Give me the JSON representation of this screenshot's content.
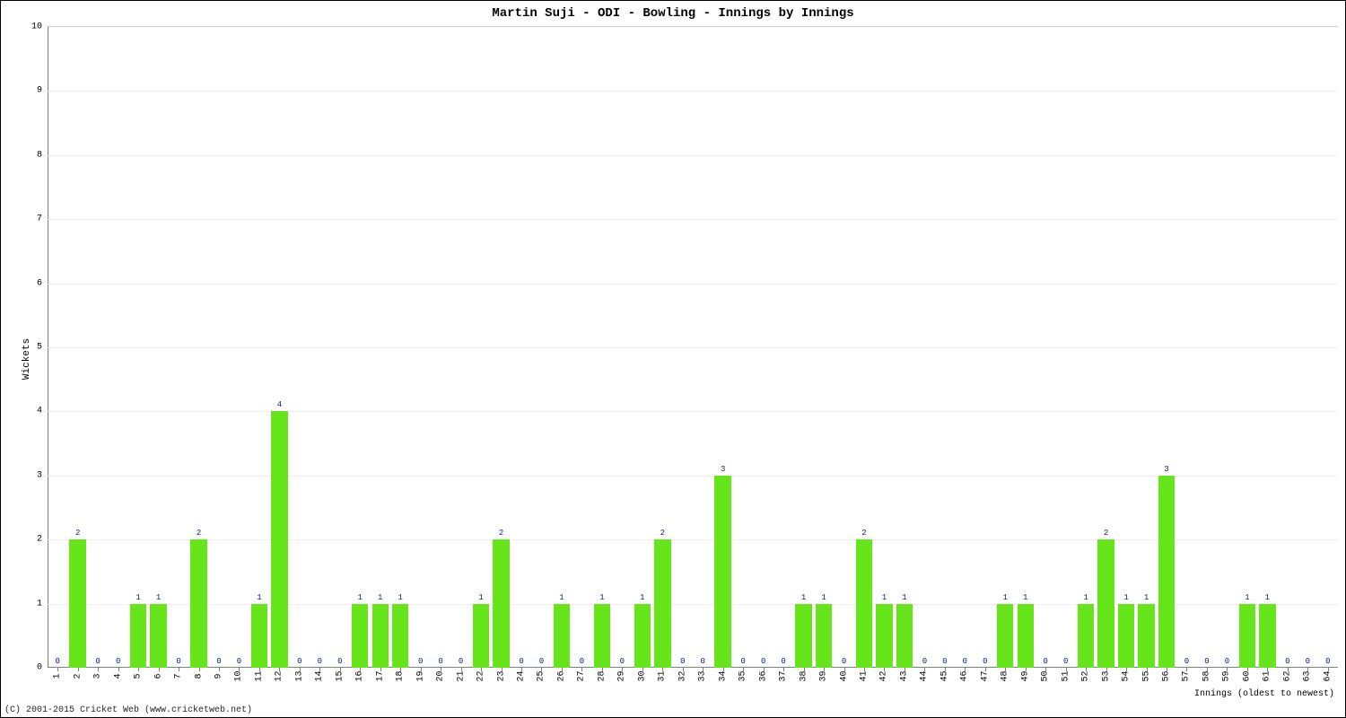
{
  "chart": {
    "type": "bar",
    "title": "Martin Suji - ODI - Bowling - Innings by Innings",
    "title_fontsize": 14,
    "xlabel": "Innings (oldest to newest)",
    "ylabel": "Wickets",
    "label_fontsize": 11,
    "copyright": "(C) 2001-2015 Cricket Web (www.cricketweb.net)",
    "background_color": "#ffffff",
    "plot_background_color": "#ffffff",
    "grid_color": "#eeeeee",
    "axis_color": "#808080",
    "border_color": "#000000",
    "bar_color": "#66e61a",
    "value_label_color": "#0a2472",
    "tick_label_color": "#000000",
    "ylim": [
      0,
      10
    ],
    "ytick_step": 1,
    "bar_width_ratio": 0.82,
    "value_label_fontsize": 9,
    "tick_label_fontsize": 10,
    "categories": [
      "1",
      "2",
      "3",
      "4",
      "5",
      "6",
      "7",
      "8",
      "9",
      "10",
      "11",
      "12",
      "13",
      "14",
      "15",
      "16",
      "17",
      "18",
      "19",
      "20",
      "21",
      "22",
      "23",
      "24",
      "25",
      "26",
      "27",
      "28",
      "29",
      "30",
      "31",
      "32",
      "33",
      "34",
      "35",
      "36",
      "37",
      "38",
      "39",
      "40",
      "41",
      "42",
      "43",
      "44",
      "45",
      "46",
      "47",
      "48",
      "49",
      "50",
      "51",
      "52",
      "53",
      "54",
      "55",
      "56",
      "57",
      "58",
      "59",
      "60",
      "61",
      "62",
      "63",
      "64"
    ],
    "values": [
      0,
      2,
      0,
      0,
      1,
      1,
      0,
      2,
      0,
      0,
      1,
      4,
      0,
      0,
      0,
      1,
      1,
      1,
      0,
      0,
      0,
      1,
      2,
      0,
      0,
      1,
      0,
      1,
      0,
      1,
      2,
      0,
      0,
      3,
      0,
      0,
      0,
      1,
      1,
      0,
      2,
      1,
      1,
      0,
      0,
      0,
      0,
      1,
      1,
      0,
      0,
      1,
      2,
      1,
      1,
      3,
      0,
      0,
      0,
      1,
      1,
      0,
      0,
      0
    ]
  }
}
